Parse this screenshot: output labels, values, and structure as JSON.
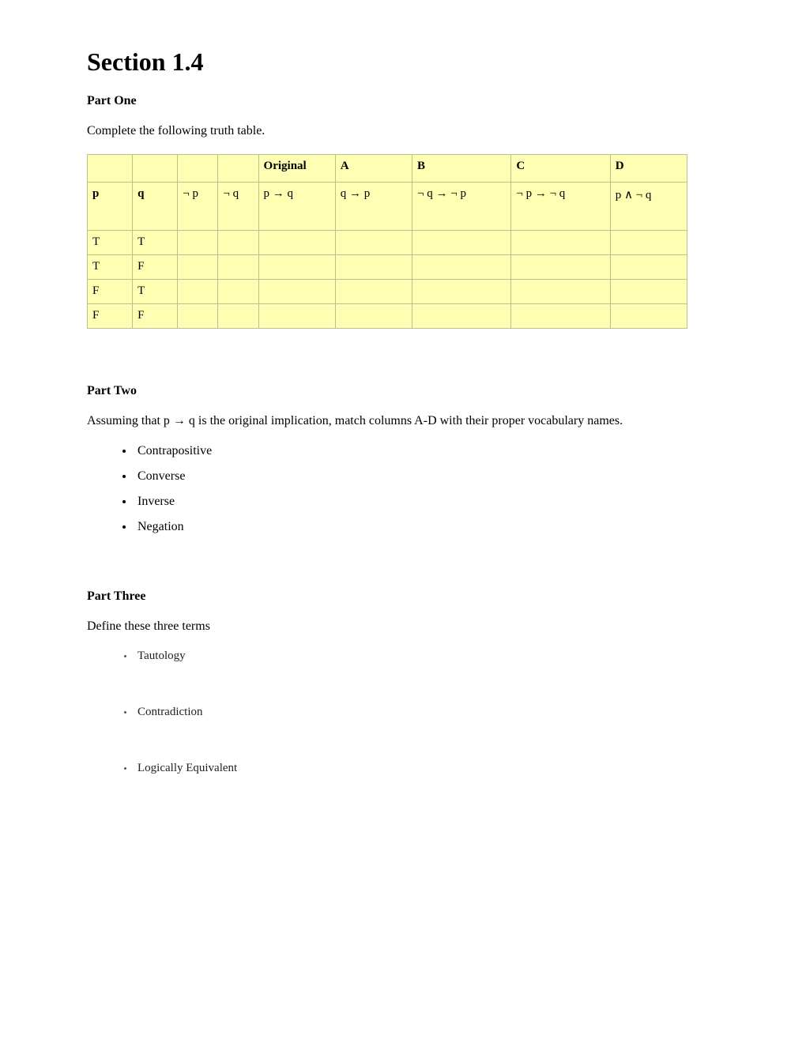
{
  "title": "Section 1.4",
  "part_one": {
    "heading": "Part One",
    "instruction": "Complete the following truth table.",
    "table": {
      "bg_color": "#ffffb3",
      "border_color": "#bfbf8f",
      "header_row": [
        "",
        "",
        "",
        "",
        "Original",
        "A",
        "B",
        "C",
        "D"
      ],
      "formula_row": [
        "p",
        "q",
        "¬ p",
        "¬ q",
        "p → q",
        "q → p",
        "¬ q → ¬ p",
        "¬ p → ¬ q",
        "p ∧ ¬ q"
      ],
      "data_rows": [
        [
          "T",
          "T",
          "",
          "",
          "",
          "",
          "",
          "",
          ""
        ],
        [
          "T",
          "F",
          "",
          "",
          "",
          "",
          "",
          "",
          ""
        ],
        [
          "F",
          "T",
          "",
          "",
          "",
          "",
          "",
          "",
          ""
        ],
        [
          "F",
          "F",
          "",
          "",
          "",
          "",
          "",
          "",
          ""
        ]
      ]
    }
  },
  "part_two": {
    "heading": "Part Two",
    "instruction": "Assuming that  p → q is the original implication, match columns A-D with their proper vocabulary names.",
    "items": [
      "Contrapositive",
      "Converse",
      "Inverse",
      "Negation"
    ]
  },
  "part_three": {
    "heading": "Part Three",
    "instruction": "Define these three terms",
    "items": [
      "Tautology",
      "Contradiction",
      "Logically Equivalent"
    ]
  }
}
